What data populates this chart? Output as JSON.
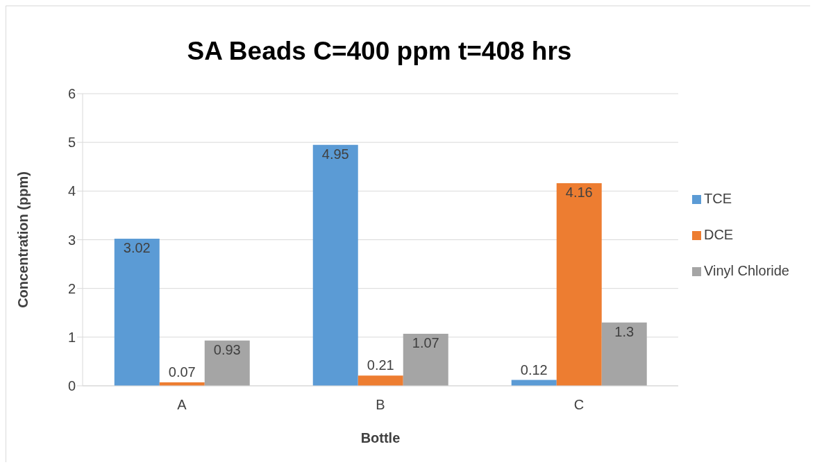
{
  "chart_data": {
    "type": "bar",
    "title": "SA Beads C=400 ppm t=408 hrs",
    "xlabel": "Bottle",
    "ylabel": "Concentration (ppm)",
    "categories": [
      "A",
      "B",
      "C"
    ],
    "series": [
      {
        "name": "TCE",
        "color": "#5b9bd5",
        "values": [
          3.02,
          4.95,
          0.12
        ]
      },
      {
        "name": "DCE",
        "color": "#ed7d31",
        "values": [
          0.07,
          0.21,
          4.16
        ]
      },
      {
        "name": "Vinyl Chloride",
        "color": "#a5a5a5",
        "values": [
          0.93,
          1.07,
          1.3
        ]
      }
    ],
    "ylim": [
      0,
      6
    ],
    "yticks": [
      0,
      1,
      2,
      3,
      4,
      5,
      6
    ],
    "grid": "y",
    "legend": "right",
    "data_labels": true
  }
}
